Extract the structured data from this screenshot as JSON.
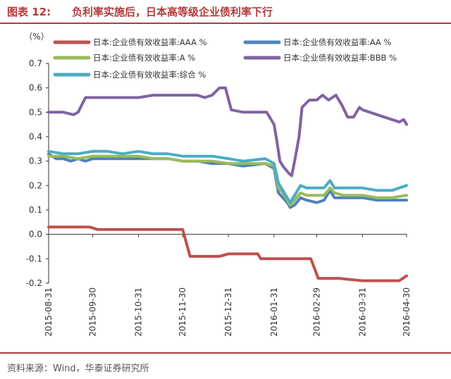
{
  "figure": {
    "label": "图表 12:",
    "title": "负利率实施后，日本高等级企业债利率下行"
  },
  "source": "资料来源：Wind，华泰证券研究所",
  "chart_data": {
    "type": "line",
    "ylabel": "（%）",
    "ylim": [
      -0.2,
      0.7
    ],
    "yticks": [
      "0.7",
      "0.6",
      "0.5",
      "0.4",
      "0.3",
      "0.2",
      "0.1",
      "0.0",
      "-0.1",
      "-0.2"
    ],
    "xlim": [
      "2015-08-31",
      "2016-04-30"
    ],
    "xticks": [
      "2015-08-31",
      "2015-09-30",
      "2015-10-31",
      "2015-11-30",
      "2015-12-31",
      "2016-01-31",
      "2016-02-29",
      "2016-03-31",
      "2016-04-30"
    ],
    "legend_placement": "top",
    "grid": false,
    "series": [
      {
        "name": "日本:企业债有效收益率:AAA %",
        "color": "#c0504d",
        "points": [
          [
            "2015-08-31",
            0.03
          ],
          [
            "2015-09-10",
            0.03
          ],
          [
            "2015-09-20",
            0.03
          ],
          [
            "2015-09-28",
            0.03
          ],
          [
            "2015-10-03",
            0.02
          ],
          [
            "2015-10-20",
            0.02
          ],
          [
            "2015-11-10",
            0.02
          ],
          [
            "2015-11-25",
            0.02
          ],
          [
            "2015-11-30",
            0.02
          ],
          [
            "2015-12-05",
            -0.09
          ],
          [
            "2015-12-15",
            -0.09
          ],
          [
            "2015-12-25",
            -0.09
          ],
          [
            "2015-12-31",
            -0.08
          ],
          [
            "2016-01-15",
            -0.08
          ],
          [
            "2016-01-20",
            -0.08
          ],
          [
            "2016-01-22",
            -0.1
          ],
          [
            "2016-02-10",
            -0.1
          ],
          [
            "2016-02-25",
            -0.1
          ],
          [
            "2016-03-01",
            -0.18
          ],
          [
            "2016-03-15",
            -0.18
          ],
          [
            "2016-03-31",
            -0.19
          ],
          [
            "2016-04-15",
            -0.19
          ],
          [
            "2016-04-25",
            -0.19
          ],
          [
            "2016-04-30",
            -0.17
          ]
        ]
      },
      {
        "name": "日本:企业债有效收益率:AA %",
        "color": "#4f81bd",
        "points": [
          [
            "2015-08-31",
            0.33
          ],
          [
            "2015-09-05",
            0.31
          ],
          [
            "2015-09-10",
            0.31
          ],
          [
            "2015-09-15",
            0.3
          ],
          [
            "2015-09-20",
            0.31
          ],
          [
            "2015-09-25",
            0.3
          ],
          [
            "2015-09-30",
            0.31
          ],
          [
            "2015-10-10",
            0.31
          ],
          [
            "2015-10-20",
            0.31
          ],
          [
            "2015-10-31",
            0.31
          ],
          [
            "2015-11-10",
            0.31
          ],
          [
            "2015-11-20",
            0.31
          ],
          [
            "2015-11-30",
            0.3
          ],
          [
            "2015-12-10",
            0.3
          ],
          [
            "2015-12-20",
            0.29
          ],
          [
            "2015-12-31",
            0.29
          ],
          [
            "2016-01-10",
            0.28
          ],
          [
            "2016-01-25",
            0.29
          ],
          [
            "2016-01-31",
            0.27
          ],
          [
            "2016-02-03",
            0.17
          ],
          [
            "2016-02-06",
            0.15
          ],
          [
            "2016-02-09",
            0.13
          ],
          [
            "2016-02-11",
            0.11
          ],
          [
            "2016-02-14",
            0.12
          ],
          [
            "2016-02-18",
            0.15
          ],
          [
            "2016-02-22",
            0.14
          ],
          [
            "2016-02-29",
            0.13
          ],
          [
            "2016-03-05",
            0.14
          ],
          [
            "2016-03-09",
            0.18
          ],
          [
            "2016-03-12",
            0.15
          ],
          [
            "2016-03-18",
            0.15
          ],
          [
            "2016-03-31",
            0.15
          ],
          [
            "2016-04-10",
            0.14
          ],
          [
            "2016-04-20",
            0.14
          ],
          [
            "2016-04-30",
            0.14
          ]
        ]
      },
      {
        "name": "日本:企业债有效收益率:A %",
        "color": "#9bbb59",
        "points": [
          [
            "2015-08-31",
            0.32
          ],
          [
            "2015-09-10",
            0.32
          ],
          [
            "2015-09-20",
            0.31
          ],
          [
            "2015-09-30",
            0.32
          ],
          [
            "2015-10-10",
            0.32
          ],
          [
            "2015-10-20",
            0.32
          ],
          [
            "2015-10-31",
            0.32
          ],
          [
            "2015-11-10",
            0.31
          ],
          [
            "2015-11-20",
            0.31
          ],
          [
            "2015-11-30",
            0.3
          ],
          [
            "2015-12-10",
            0.3
          ],
          [
            "2015-12-20",
            0.3
          ],
          [
            "2015-12-31",
            0.29
          ],
          [
            "2016-01-10",
            0.29
          ],
          [
            "2016-01-25",
            0.29
          ],
          [
            "2016-01-31",
            0.28
          ],
          [
            "2016-02-03",
            0.19
          ],
          [
            "2016-02-06",
            0.17
          ],
          [
            "2016-02-09",
            0.14
          ],
          [
            "2016-02-11",
            0.12
          ],
          [
            "2016-02-14",
            0.14
          ],
          [
            "2016-02-18",
            0.17
          ],
          [
            "2016-02-22",
            0.16
          ],
          [
            "2016-02-29",
            0.16
          ],
          [
            "2016-03-05",
            0.16
          ],
          [
            "2016-03-09",
            0.19
          ],
          [
            "2016-03-12",
            0.17
          ],
          [
            "2016-03-18",
            0.16
          ],
          [
            "2016-03-31",
            0.16
          ],
          [
            "2016-04-10",
            0.15
          ],
          [
            "2016-04-20",
            0.15
          ],
          [
            "2016-04-30",
            0.16
          ]
        ]
      },
      {
        "name": "日本:企业债有效收益率:BBB %",
        "color": "#8064a2",
        "points": [
          [
            "2015-08-31",
            0.5
          ],
          [
            "2015-09-10",
            0.5
          ],
          [
            "2015-09-17",
            0.49
          ],
          [
            "2015-09-20",
            0.5
          ],
          [
            "2015-09-25",
            0.56
          ],
          [
            "2015-09-30",
            0.56
          ],
          [
            "2015-10-10",
            0.56
          ],
          [
            "2015-10-20",
            0.56
          ],
          [
            "2015-10-31",
            0.56
          ],
          [
            "2015-11-10",
            0.57
          ],
          [
            "2015-11-20",
            0.57
          ],
          [
            "2015-11-30",
            0.57
          ],
          [
            "2015-12-10",
            0.57
          ],
          [
            "2015-12-15",
            0.56
          ],
          [
            "2015-12-20",
            0.57
          ],
          [
            "2015-12-25",
            0.6
          ],
          [
            "2015-12-29",
            0.6
          ],
          [
            "2016-01-02",
            0.51
          ],
          [
            "2016-01-10",
            0.5
          ],
          [
            "2016-01-20",
            0.5
          ],
          [
            "2016-01-26",
            0.5
          ],
          [
            "2016-01-31",
            0.45
          ],
          [
            "2016-02-02",
            0.38
          ],
          [
            "2016-02-04",
            0.3
          ],
          [
            "2016-02-06",
            0.28
          ],
          [
            "2016-02-10",
            0.25
          ],
          [
            "2016-02-12",
            0.24
          ],
          [
            "2016-02-14",
            0.3
          ],
          [
            "2016-02-17",
            0.4
          ],
          [
            "2016-02-19",
            0.52
          ],
          [
            "2016-02-24",
            0.55
          ],
          [
            "2016-02-29",
            0.55
          ],
          [
            "2016-03-04",
            0.57
          ],
          [
            "2016-03-08",
            0.55
          ],
          [
            "2016-03-13",
            0.57
          ],
          [
            "2016-03-17",
            0.53
          ],
          [
            "2016-03-21",
            0.48
          ],
          [
            "2016-03-25",
            0.48
          ],
          [
            "2016-03-29",
            0.52
          ],
          [
            "2016-03-31",
            0.51
          ],
          [
            "2016-04-05",
            0.5
          ],
          [
            "2016-04-10",
            0.49
          ],
          [
            "2016-04-15",
            0.48
          ],
          [
            "2016-04-20",
            0.47
          ],
          [
            "2016-04-25",
            0.46
          ],
          [
            "2016-04-28",
            0.47
          ],
          [
            "2016-04-30",
            0.45
          ]
        ]
      },
      {
        "name": "日本:企业债有效收益率:综合 %",
        "color": "#4bacc6",
        "points": [
          [
            "2015-08-31",
            0.34
          ],
          [
            "2015-09-10",
            0.33
          ],
          [
            "2015-09-20",
            0.33
          ],
          [
            "2015-09-30",
            0.34
          ],
          [
            "2015-10-10",
            0.34
          ],
          [
            "2015-10-20",
            0.33
          ],
          [
            "2015-10-31",
            0.34
          ],
          [
            "2015-11-10",
            0.33
          ],
          [
            "2015-11-20",
            0.33
          ],
          [
            "2015-11-30",
            0.32
          ],
          [
            "2015-12-10",
            0.32
          ],
          [
            "2015-12-20",
            0.32
          ],
          [
            "2015-12-31",
            0.31
          ],
          [
            "2016-01-10",
            0.3
          ],
          [
            "2016-01-25",
            0.31
          ],
          [
            "2016-01-31",
            0.29
          ],
          [
            "2016-02-03",
            0.21
          ],
          [
            "2016-02-06",
            0.18
          ],
          [
            "2016-02-09",
            0.15
          ],
          [
            "2016-02-11",
            0.13
          ],
          [
            "2016-02-14",
            0.16
          ],
          [
            "2016-02-18",
            0.2
          ],
          [
            "2016-02-22",
            0.19
          ],
          [
            "2016-02-29",
            0.19
          ],
          [
            "2016-03-05",
            0.19
          ],
          [
            "2016-03-09",
            0.22
          ],
          [
            "2016-03-12",
            0.19
          ],
          [
            "2016-03-18",
            0.19
          ],
          [
            "2016-03-31",
            0.19
          ],
          [
            "2016-04-10",
            0.18
          ],
          [
            "2016-04-20",
            0.18
          ],
          [
            "2016-04-30",
            0.2
          ]
        ]
      }
    ]
  }
}
